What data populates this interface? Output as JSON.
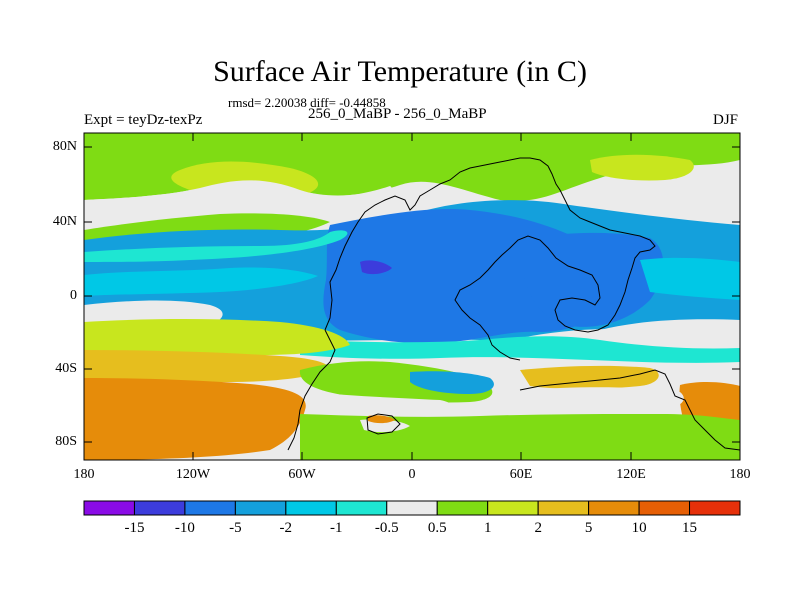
{
  "title": "Surface Air Temperature (in C)",
  "stats": "rmsd= 2.20038 diff= -0.44858",
  "experiment": "Expt = teyDz-texPz",
  "subtitle": "256_0_MaBP - 256_0_MaBP",
  "season": "DJF",
  "chart_data": {
    "type": "heatmap",
    "title": "Surface Air Temperature (in C)",
    "xlabel": "",
    "ylabel": "",
    "xlim": [
      -180,
      180
    ],
    "ylim": [
      -90,
      90
    ],
    "x_ticks": [
      {
        "value": -180,
        "label": "180"
      },
      {
        "value": -120,
        "label": "120W"
      },
      {
        "value": -60,
        "label": "60W"
      },
      {
        "value": 0,
        "label": "0"
      },
      {
        "value": 60,
        "label": "60E"
      },
      {
        "value": 120,
        "label": "120E"
      },
      {
        "value": 180,
        "label": "180"
      }
    ],
    "y_ticks": [
      {
        "value": 80,
        "label": "80N"
      },
      {
        "value": 40,
        "label": "40N"
      },
      {
        "value": 0,
        "label": "0"
      },
      {
        "value": -40,
        "label": "40S"
      },
      {
        "value": -80,
        "label": "80S"
      }
    ],
    "colorbar": {
      "labels": [
        "-15",
        "-10",
        "-5",
        "-2",
        "-1",
        "-0.5",
        "0.5",
        "1",
        "2",
        "5",
        "10",
        "15"
      ],
      "colors": [
        "#8a0be6",
        "#3c3cdc",
        "#1e78e6",
        "#14a0dc",
        "#00c8e6",
        "#1ee6d2",
        "#ebebeb",
        "#7fdc14",
        "#c8e61e",
        "#e6be1e",
        "#e68c0a",
        "#e65f05",
        "#e6300a"
      ]
    }
  }
}
